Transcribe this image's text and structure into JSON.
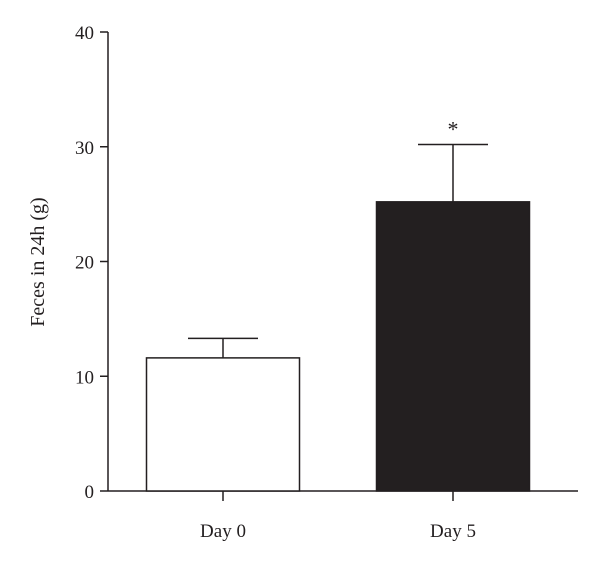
{
  "chart_data": {
    "type": "bar",
    "title": "",
    "xlabel": "",
    "ylabel": "Feces in 24h (g)",
    "ylim": [
      0,
      40
    ],
    "yticks": [
      "0",
      "10",
      "20",
      "30",
      "40"
    ],
    "categories": [
      "Day 0",
      "Day 5"
    ],
    "values": [
      11.6,
      25.2
    ],
    "error_bars": [
      1.7,
      5.0
    ],
    "bar_colors": [
      "#ffffff",
      "#231f20"
    ],
    "annotations": [
      {
        "category": "Day 5",
        "text": "*"
      }
    ],
    "grid": false,
    "legend": "none"
  }
}
